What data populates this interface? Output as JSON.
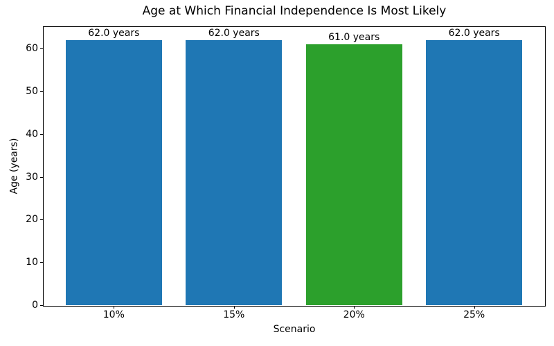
{
  "chart_data": {
    "type": "bar",
    "title": "Age at Which Financial Independence Is Most Likely",
    "xlabel": "Scenario",
    "ylabel": "Age (years)",
    "categories": [
      "10%",
      "15%",
      "20%",
      "25%"
    ],
    "values": [
      62.0,
      62.0,
      61.0,
      62.0
    ],
    "bar_labels": [
      "62.0 years",
      "62.0 years",
      "61.0 years",
      "62.0 years"
    ],
    "bar_colors": [
      "#1f77b4",
      "#1f77b4",
      "#2ca02c",
      "#1f77b4"
    ],
    "highlight_color": "#2ca02c",
    "default_color": "#1f77b4",
    "ylim": [
      0,
      65.1
    ],
    "yticks": [
      0,
      10,
      20,
      30,
      40,
      50,
      60
    ],
    "grid": false,
    "legend": "none"
  }
}
